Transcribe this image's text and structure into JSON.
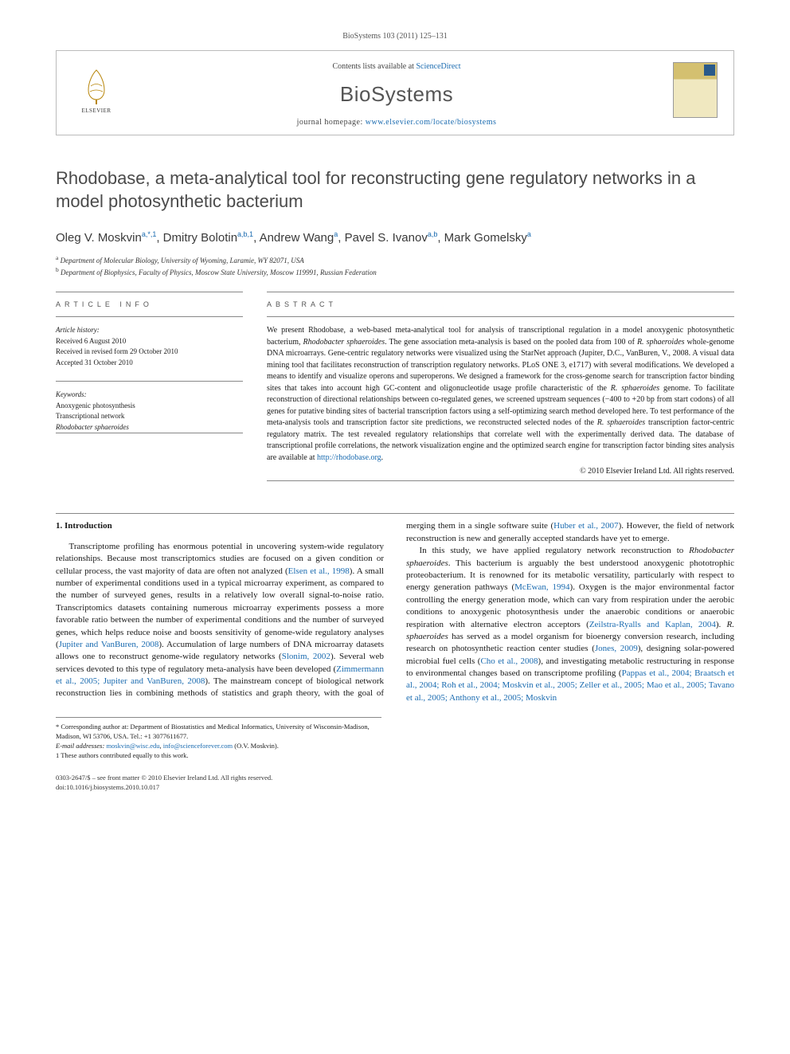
{
  "top_citation": "BioSystems 103 (2011) 125–131",
  "header": {
    "contents_prefix": "Contents lists available at ",
    "contents_link": "ScienceDirect",
    "journal_name": "BioSystems",
    "homepage_prefix": "journal homepage: ",
    "homepage_url": "www.elsevier.com/locate/biosystems",
    "publisher_label": "ELSEVIER"
  },
  "title": "Rhodobase, a meta-analytical tool for reconstructing gene regulatory networks in a model photosynthetic bacterium",
  "authors_html": "Oleg V. Moskvin<sup>a,*,1</sup>, Dmitry Bolotin<sup>a,b,1</sup>, Andrew Wang<sup>a</sup>, Pavel S. Ivanov<sup>a,b</sup>, Mark Gomelsky<sup>a</sup>",
  "affiliations": [
    {
      "sup": "a",
      "text": "Department of Molecular Biology, University of Wyoming, Laramie, WY 82071, USA"
    },
    {
      "sup": "b",
      "text": "Department of Biophysics, Faculty of Physics, Moscow State University, Moscow 119991, Russian Federation"
    }
  ],
  "info": {
    "label": "ARTICLE INFO",
    "history_label": "Article history:",
    "history": [
      "Received 6 August 2010",
      "Received in revised form 29 October 2010",
      "Accepted 31 October 2010"
    ],
    "keywords_label": "Keywords:",
    "keywords": [
      {
        "text": "Anoxygenic photosynthesis",
        "italic": false
      },
      {
        "text": "Transcriptional network",
        "italic": false
      },
      {
        "text": "Rhodobacter sphaeroides",
        "italic": true
      }
    ]
  },
  "abstract": {
    "label": "ABSTRACT",
    "link_text": "http://rhodobase.org",
    "text_before_link": "We present Rhodobase, a web-based meta-analytical tool for analysis of transcriptional regulation in a model anoxygenic photosynthetic bacterium, Rhodobacter sphaeroides. The gene association meta-analysis is based on the pooled data from 100 of R. sphaeroides whole-genome DNA microarrays. Gene-centric regulatory networks were visualized using the StarNet approach (Jupiter, D.C., VanBuren, V., 2008. A visual data mining tool that facilitates reconstruction of transcription regulatory networks. PLoS ONE 3, e1717) with several modifications. We developed a means to identify and visualize operons and superoperons. We designed a framework for the cross-genome search for transcription factor binding sites that takes into account high GC-content and oligonucleotide usage profile characteristic of the R. sphaeroides genome. To facilitate reconstruction of directional relationships between co-regulated genes, we screened upstream sequences (−400 to +20 bp from start codons) of all genes for putative binding sites of bacterial transcription factors using a self-optimizing search method developed here. To test performance of the meta-analysis tools and transcription factor site predictions, we reconstructed selected nodes of the R. sphaeroides transcription factor-centric regulatory matrix. The test revealed regulatory relationships that correlate well with the experimentally derived data. The database of transcriptional profile correlations, the network visualization engine and the optimized search engine for transcription factor binding sites analysis are available at ",
    "text_after_link": ".",
    "copyright": "© 2010 Elsevier Ireland Ltd. All rights reserved."
  },
  "body": {
    "heading": "1. Introduction",
    "para1_parts": [
      {
        "t": "Transcriptome profiling has enormous potential in uncovering system-wide regulatory relationships. Because most transcriptomics studies are focused on a given condition or cellular process, the vast majority of data are often not analyzed ("
      },
      {
        "t": "Elsen et al., 1998",
        "link": true
      },
      {
        "t": "). A small number of experimental conditions used in a typical microarray experiment, as compared to the number of surveyed genes, results in a relatively low overall signal-to-noise ratio. Transcriptomics datasets containing numerous microarray experiments possess a more favorable ratio between the number of experimental conditions and the number of surveyed genes, which helps reduce noise and boosts sensitivity of genome-wide regulatory analyses ("
      },
      {
        "t": "Jupiter and VanBuren, 2008",
        "link": true
      },
      {
        "t": "). Accumulation of large numbers of DNA microarray datasets allows one to reconstruct genome-wide regulatory networks ("
      },
      {
        "t": "Slonim, 2002",
        "link": true
      },
      {
        "t": "). Several web services devoted to this type of regulatory meta-analysis have been developed ("
      },
      {
        "t": "Zimmermann et al., 2005; Jupiter and VanBuren, 2008",
        "link": true
      },
      {
        "t": "). The mainstream concept of biological network reconstruction lies in combining methods of statistics and graph theory, with the goal of merging them in a single software suite ("
      },
      {
        "t": "Huber et al., 2007",
        "link": true
      },
      {
        "t": "). However, the field of network reconstruction is new and generally accepted standards have yet to emerge."
      }
    ],
    "para2_parts": [
      {
        "t": "In this study, we have applied regulatory network reconstruction to "
      },
      {
        "t": "Rhodobacter sphaeroides",
        "species": true
      },
      {
        "t": ". This bacterium is arguably the best understood anoxygenic phototrophic proteobacterium. It is renowned for its metabolic versatility, particularly with respect to energy generation pathways ("
      },
      {
        "t": "McEwan, 1994",
        "link": true
      },
      {
        "t": "). Oxygen is the major environmental factor controlling the energy generation mode, which can vary from respiration under the aerobic conditions to anoxygenic photosynthesis under the anaerobic conditions or anaerobic respiration with alternative electron acceptors ("
      },
      {
        "t": "Zeilstra-Ryalls and Kaplan, 2004",
        "link": true
      },
      {
        "t": "). "
      },
      {
        "t": "R. sphaeroides",
        "species": true
      },
      {
        "t": " has served as a model organism for bioenergy conversion research, including research on photosynthetic reaction center studies ("
      },
      {
        "t": "Jones, 2009",
        "link": true
      },
      {
        "t": "), designing solar-powered microbial fuel cells ("
      },
      {
        "t": "Cho et al., 2008",
        "link": true
      },
      {
        "t": "), and investigating metabolic restructuring in response to environmental changes based on transcriptome profiling ("
      },
      {
        "t": "Pappas et al., 2004; Braatsch et al., 2004; Roh et al., 2004; Moskvin et al., 2005; Zeller et al., 2005; Mao et al., 2005; Tavano et al., 2005; Anthony et al., 2005; Moskvin",
        "link": true
      }
    ]
  },
  "footnotes": {
    "corr": "* Corresponding author at: Department of Biostatistics and Medical Informatics, University of Wisconsin-Madison, Madison, WI 53706, USA. Tel.: +1 3077611677.",
    "email_label": "E-mail addresses: ",
    "email1": "moskvin@wisc.edu",
    "email2": "info@scienceforever.com",
    "email_suffix": " (O.V. Moskvin).",
    "equal": "1 These authors contributed equally to this work."
  },
  "bottom": {
    "line1": "0303-2647/$ – see front matter © 2010 Elsevier Ireland Ltd. All rights reserved.",
    "line2": "doi:10.1016/j.biosystems.2010.10.017"
  },
  "colors": {
    "link": "#1a6bb0",
    "title_gray": "#4a4a4a",
    "rule": "#888888"
  }
}
